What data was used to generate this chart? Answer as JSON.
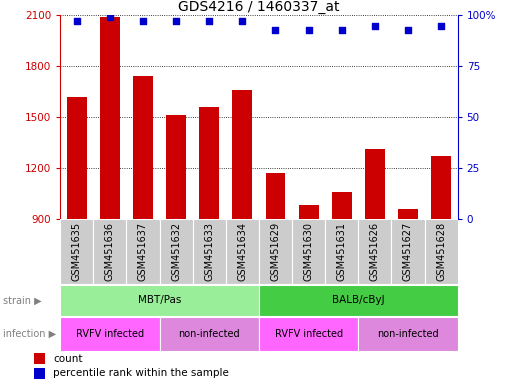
{
  "title": "GDS4216 / 1460337_at",
  "samples": [
    "GSM451635",
    "GSM451636",
    "GSM451637",
    "GSM451632",
    "GSM451633",
    "GSM451634",
    "GSM451629",
    "GSM451630",
    "GSM451631",
    "GSM451626",
    "GSM451627",
    "GSM451628"
  ],
  "counts": [
    1620,
    2090,
    1740,
    1510,
    1560,
    1660,
    1170,
    980,
    1060,
    1310,
    960,
    1270
  ],
  "percentile_ranks": [
    97,
    99,
    97,
    97,
    97,
    97,
    93,
    93,
    93,
    95,
    93,
    95
  ],
  "ylim_left": [
    900,
    2100
  ],
  "ylim_right": [
    0,
    100
  ],
  "yticks_left": [
    900,
    1200,
    1500,
    1800,
    2100
  ],
  "yticks_right": [
    0,
    25,
    50,
    75,
    100
  ],
  "bar_color": "#cc0000",
  "dot_color": "#0000cc",
  "strain_groups": [
    {
      "label": "MBT/Pas",
      "start": 0,
      "end": 5,
      "color": "#99ee99"
    },
    {
      "label": "BALB/cByJ",
      "start": 6,
      "end": 11,
      "color": "#44cc44"
    }
  ],
  "infection_groups": [
    {
      "label": "RVFV infected",
      "start": 0,
      "end": 2,
      "color": "#ff66ff"
    },
    {
      "label": "non-infected",
      "start": 3,
      "end": 5,
      "color": "#dd88dd"
    },
    {
      "label": "RVFV infected",
      "start": 6,
      "end": 8,
      "color": "#ff66ff"
    },
    {
      "label": "non-infected",
      "start": 9,
      "end": 11,
      "color": "#dd88dd"
    }
  ],
  "strain_label": "strain",
  "infection_label": "infection",
  "legend_count_label": "count",
  "legend_percentile_label": "percentile rank within the sample",
  "sample_box_color": "#cccccc",
  "background_color": "#ffffff",
  "title_fontsize": 10,
  "tick_fontsize": 7.5,
  "label_fontsize": 7,
  "annot_fontsize": 7.5
}
